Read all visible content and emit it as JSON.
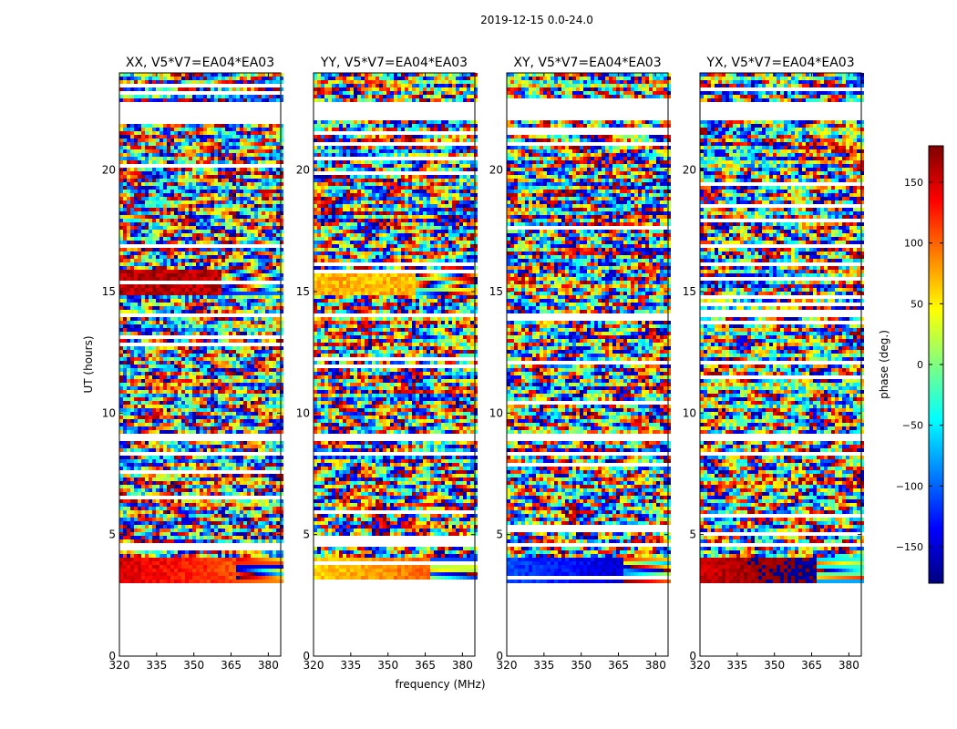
{
  "chart_data": {
    "type": "heatmap",
    "suptitle": "2019-12-15 0.0-24.0",
    "xlabel": "frequency (MHz)",
    "ylabel": "UT (hours)",
    "xlim": [
      320,
      385
    ],
    "ylim": [
      0,
      24
    ],
    "x_ticks": [
      320,
      335,
      350,
      365,
      380
    ],
    "y_ticks": [
      0,
      5,
      10,
      15,
      20
    ],
    "colorbar": {
      "label": "phase (deg.)",
      "range": [
        -180,
        180
      ],
      "ticks": [
        150,
        100,
        50,
        0,
        -50,
        -100,
        -150
      ],
      "tick_labels": [
        "150",
        "100",
        "50",
        "0",
        "−50",
        "−100",
        "−150"
      ],
      "colormap": [
        "#00007f",
        "#0000ff",
        "#0080ff",
        "#00ffff",
        "#80ff80",
        "#ffff00",
        "#ff8000",
        "#ff0000",
        "#7f0000"
      ]
    },
    "data_extent_hours": [
      3.0,
      24.0
    ],
    "blank_bands_hours": [
      [
        22.2,
        22.9
      ],
      [
        14.0,
        14.2
      ],
      [
        9.0,
        9.2
      ],
      [
        8.3,
        8.5
      ],
      [
        4.6,
        4.7
      ]
    ],
    "panels": [
      {
        "title": "XX, V5*V7=EA04*EA03",
        "dominant_phase_3_4h": 150,
        "dominant_phase_15h": 160
      },
      {
        "title": "YY, V5*V7=EA04*EA03",
        "dominant_phase_3_4h": 60,
        "dominant_phase_15h": 70
      },
      {
        "title": "XY, V5*V7=EA04*EA03",
        "dominant_phase_3_4h": -110,
        "dominant_phase_15h": null
      },
      {
        "title": "YX, V5*V7=EA04*EA03",
        "dominant_phase_3_4h": 150,
        "dominant_phase_15h": null
      }
    ]
  }
}
